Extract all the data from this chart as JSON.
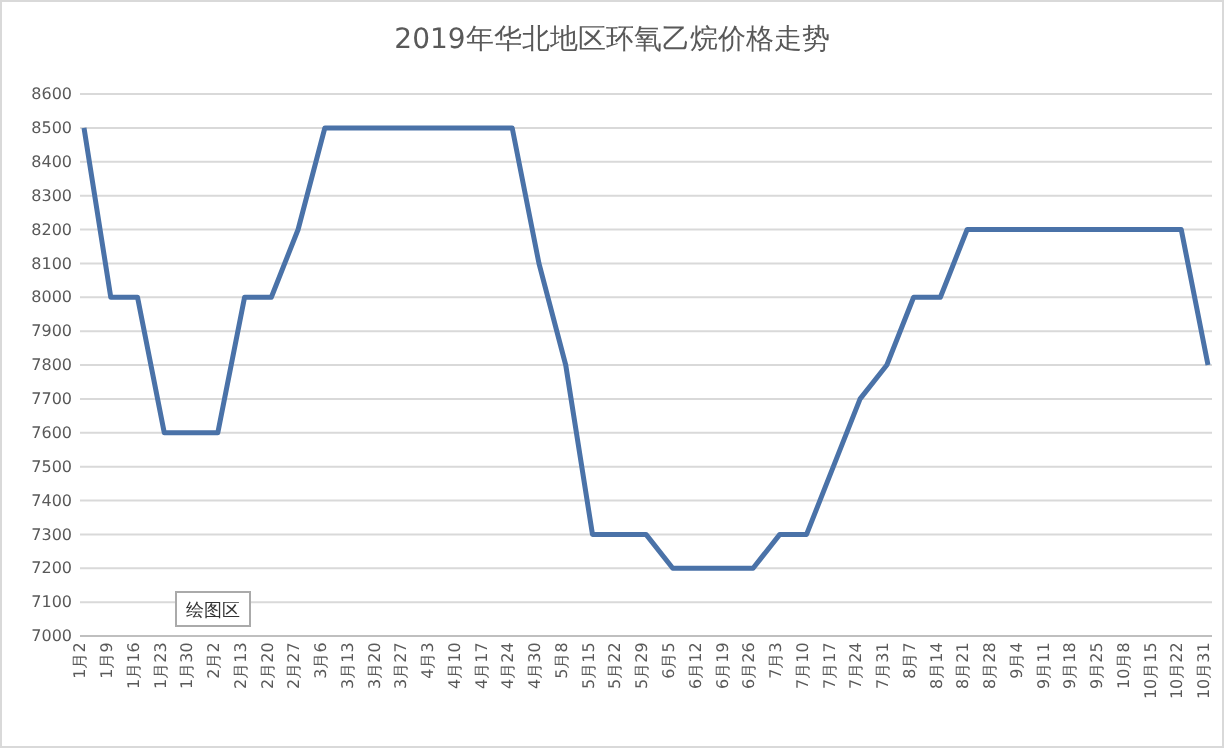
{
  "chart_data": {
    "type": "line",
    "title": "2019年华北地区环氧乙烷价格走势",
    "categories": [
      "1月2",
      "1月9",
      "1月16",
      "1月23",
      "1月30",
      "2月2",
      "2月13",
      "2月20",
      "2月27",
      "3月6",
      "3月13",
      "3月20",
      "3月27",
      "4月3",
      "4月10",
      "4月17",
      "4月24",
      "4月30",
      "5月8",
      "5月15",
      "5月22",
      "5月29",
      "6月5",
      "6月12",
      "6月19",
      "6月26",
      "7月3",
      "7月10",
      "7月17",
      "7月24",
      "7月31",
      "8月7",
      "8月14",
      "8月21",
      "8月28",
      "9月4",
      "9月11",
      "9月18",
      "9月25",
      "10月8",
      "10月15",
      "10月22",
      "10月31"
    ],
    "series": [
      {
        "color": "#4a72a8",
        "values": [
          8500,
          8000,
          8000,
          7600,
          7600,
          7600,
          8000,
          8000,
          8200,
          8500,
          8500,
          8500,
          8500,
          8500,
          8500,
          8500,
          8500,
          8100,
          7800,
          7300,
          7300,
          7300,
          7200,
          7200,
          7200,
          7200,
          7300,
          7300,
          7500,
          7700,
          7800,
          8000,
          8000,
          8200,
          8200,
          8200,
          8200,
          8200,
          8200,
          8200,
          8200,
          8200,
          7800
        ]
      }
    ],
    "ylim": [
      7000,
      8600
    ],
    "yticks": [
      7000,
      7100,
      7200,
      7300,
      7400,
      7500,
      7600,
      7700,
      7800,
      7900,
      8000,
      8100,
      8200,
      8300,
      8400,
      8500,
      8600
    ],
    "grid": "y",
    "marker": "none",
    "line_style": "solid",
    "annotations": [
      "绘图区"
    ]
  }
}
